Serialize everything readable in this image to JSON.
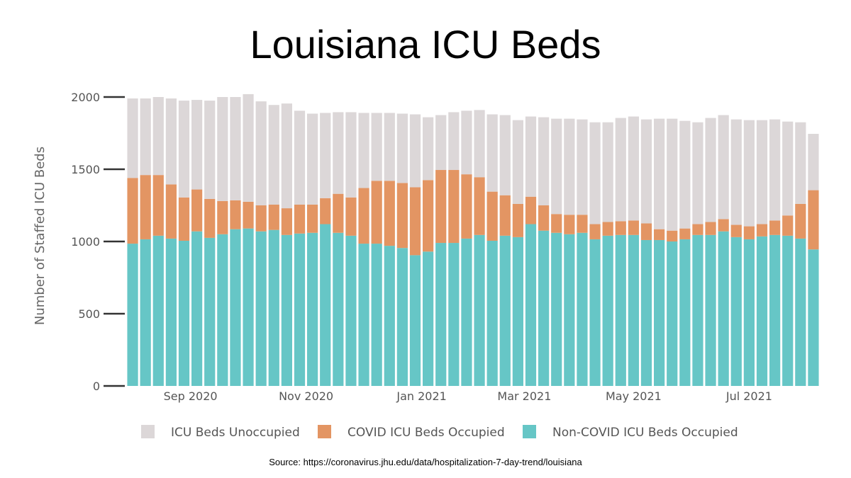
{
  "chart_data": {
    "type": "bar",
    "stacked": true,
    "title": "Louisiana ICU Beds",
    "ylabel": "Number of Staffed ICU Beds",
    "xlabel": "",
    "ylim": [
      0,
      2000
    ],
    "yticks": [
      0,
      500,
      1000,
      1500,
      2000
    ],
    "x_tick_labels": [
      {
        "label": "Sep 2020",
        "index": 4.5
      },
      {
        "label": "Nov 2020",
        "index": 13.5
      },
      {
        "label": "Jan 2021",
        "index": 22.5
      },
      {
        "label": "Mar 2021",
        "index": 30.5
      },
      {
        "label": "May 2021",
        "index": 39
      },
      {
        "label": "Jul 2021",
        "index": 48
      }
    ],
    "series": [
      {
        "name": "Non-COVID ICU Beds Occupied",
        "color": "#66c6c6",
        "values": [
          985,
          1015,
          1040,
          1020,
          1005,
          1070,
          1025,
          1050,
          1085,
          1090,
          1070,
          1080,
          1045,
          1055,
          1060,
          1120,
          1060,
          1040,
          985,
          985,
          970,
          955,
          905,
          930,
          990,
          990,
          1020,
          1045,
          1005,
          1040,
          1030,
          1120,
          1075,
          1060,
          1050,
          1060,
          1015,
          1040,
          1045,
          1045,
          1010,
          1010,
          1000,
          1015,
          1045,
          1045,
          1070,
          1030,
          1015,
          1035,
          1045,
          1040,
          1020,
          945
        ]
      },
      {
        "name": "COVID ICU Beds Occupied",
        "color": "#e39563",
        "values": [
          455,
          445,
          420,
          375,
          300,
          290,
          270,
          230,
          200,
          185,
          180,
          175,
          185,
          200,
          195,
          180,
          270,
          265,
          385,
          435,
          450,
          450,
          470,
          495,
          505,
          505,
          445,
          400,
          340,
          280,
          230,
          190,
          175,
          130,
          135,
          125,
          105,
          95,
          95,
          100,
          115,
          75,
          75,
          75,
          75,
          90,
          85,
          85,
          90,
          85,
          100,
          140,
          240,
          410
        ]
      },
      {
        "name": "ICU Beds Unoccupied",
        "color": "#dcd7d8",
        "values": [
          550,
          530,
          540,
          595,
          670,
          620,
          680,
          720,
          715,
          745,
          720,
          690,
          725,
          650,
          630,
          590,
          565,
          590,
          520,
          470,
          470,
          480,
          505,
          435,
          380,
          400,
          440,
          465,
          535,
          555,
          580,
          555,
          610,
          660,
          665,
          660,
          705,
          690,
          715,
          720,
          720,
          765,
          775,
          745,
          705,
          720,
          720,
          730,
          735,
          720,
          700,
          650,
          565,
          390
        ]
      }
    ],
    "legend": [
      {
        "label": "ICU Beds Unoccupied",
        "color": "#dcd7d8"
      },
      {
        "label": "COVID ICU Beds Occupied",
        "color": "#e39563"
      },
      {
        "label": "Non-COVID ICU Beds Occupied",
        "color": "#66c6c6"
      }
    ],
    "legend_position": "bottom",
    "grid": false
  },
  "source": "Source: https://coronavirus.jhu.edu/data/hospitalization-7-day-trend/louisiana"
}
